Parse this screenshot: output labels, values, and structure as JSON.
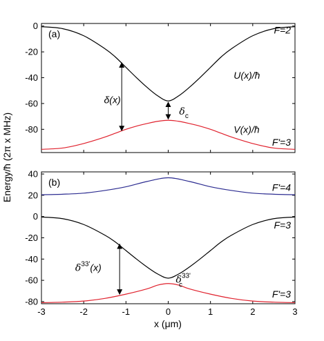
{
  "figure": {
    "ylabel": "Energy/ħ (2π x MHz)",
    "xlabel": "x (μm)"
  },
  "chart_data": [
    {
      "type": "line",
      "panel_label": "(a)",
      "xlim": [
        -3,
        3
      ],
      "ylim": [
        -98,
        2
      ],
      "yticks": [
        "0",
        "-20",
        "-40",
        "-60",
        "-80"
      ],
      "ytick_values": [
        0,
        -20,
        -40,
        -60,
        -80
      ],
      "grid": false,
      "series": [
        {
          "name": "U(x)/ħ",
          "color": "#000000",
          "x": [
            -3,
            -2.5,
            -2,
            -1.5,
            -1.25,
            -1,
            -0.75,
            -0.5,
            -0.25,
            0,
            0.25,
            0.5,
            0.75,
            1,
            1.25,
            1.5,
            2,
            2.5,
            3
          ],
          "y": [
            -0.5,
            -2,
            -7.5,
            -17.5,
            -24,
            -32,
            -40,
            -47.5,
            -54,
            -58,
            -54,
            -47.5,
            -40,
            -32,
            -24,
            -17.5,
            -7.5,
            -2,
            -0.5
          ]
        },
        {
          "name": "V(x)/ħ",
          "color": "#e0202c",
          "x": [
            -3,
            -2.5,
            -2,
            -1.5,
            -1.25,
            -1,
            -0.75,
            -0.5,
            -0.25,
            0,
            0.25,
            0.5,
            0.75,
            1,
            1.25,
            1.5,
            2,
            2.5,
            3
          ],
          "y": [
            -95.5,
            -94.5,
            -91,
            -86,
            -83,
            -80,
            -77.5,
            -75.5,
            -73.8,
            -73,
            -73.8,
            -75.5,
            -77.5,
            -80,
            -83,
            -86,
            -91,
            -94.5,
            -95.5
          ]
        }
      ],
      "level_labels": [
        {
          "text": "F=2",
          "color": "#000000",
          "y": -3
        },
        {
          "text": "F'=3",
          "color": "#e0202c",
          "y": -90
        }
      ],
      "annotations": [
        {
          "text": "U(x)/ħ",
          "color": "#000000",
          "x": 1.55,
          "y": -38
        },
        {
          "text": "V(x)/ħ",
          "color": "#e0202c",
          "x": 1.55,
          "y": -80
        },
        {
          "text": "δ(x)",
          "color": "#000000",
          "x": -1.52,
          "y": -57
        },
        {
          "text": "δ",
          "sub": "c",
          "color": "#000000",
          "x": 0.26,
          "y": -66
        }
      ],
      "arrows": [
        {
          "x": -1.1,
          "y1": -28.5,
          "y2": -81
        },
        {
          "x": 0.0,
          "y1": -59,
          "y2": -72
        }
      ]
    },
    {
      "type": "line",
      "panel_label": "(b)",
      "xlim": [
        -3,
        3
      ],
      "ylim": [
        -82,
        42
      ],
      "yticks": [
        "40",
        "20",
        "0",
        "-20",
        "-40",
        "-60",
        "-80"
      ],
      "ytick_values": [
        40,
        20,
        0,
        -20,
        -40,
        -60,
        -80
      ],
      "xticks": [
        "-3",
        "-2",
        "-1",
        "0",
        "1",
        "2",
        "3"
      ],
      "xtick_values": [
        -3,
        -2,
        -1,
        0,
        1,
        2,
        3
      ],
      "grid": false,
      "series": [
        {
          "name": "F'=4",
          "color": "#2b2b90",
          "x": [
            -3,
            -2.5,
            -2,
            -1.5,
            -1,
            -0.5,
            0,
            0.5,
            1,
            1.5,
            2,
            2.5,
            3
          ],
          "y": [
            20.5,
            21,
            22,
            24.5,
            28,
            33,
            36.5,
            33,
            28,
            24.5,
            22,
            21,
            20.5
          ]
        },
        {
          "name": "F=3",
          "color": "#000000",
          "x": [
            -3,
            -2.5,
            -2,
            -1.5,
            -1.25,
            -1,
            -0.75,
            -0.5,
            -0.25,
            0,
            0.25,
            0.5,
            0.75,
            1,
            1.25,
            1.5,
            2,
            2.5,
            3
          ],
          "y": [
            -0.5,
            -2,
            -7.5,
            -17.5,
            -24,
            -32,
            -40,
            -47.5,
            -54,
            -58,
            -54,
            -47.5,
            -40,
            -32,
            -24,
            -17.5,
            -7.5,
            -2,
            -0.5
          ]
        },
        {
          "name": "F'=3",
          "color": "#e0202c",
          "x": [
            -3,
            -2.5,
            -2,
            -1.5,
            -1,
            -0.5,
            -0.25,
            0,
            0.25,
            0.5,
            1,
            1.5,
            2,
            2.5,
            3
          ],
          "y": [
            -81,
            -80.5,
            -79.5,
            -77,
            -73,
            -68,
            -64.5,
            -63,
            -64.5,
            -68,
            -73,
            -77,
            -79.5,
            -80.5,
            -81
          ]
        }
      ],
      "level_labels": [
        {
          "text": "F'=4",
          "color": "#2b2b90",
          "y": 27.5
        },
        {
          "text": "F=3",
          "color": "#000000",
          "y": -8
        },
        {
          "text": "F'=3",
          "color": "#e0202c",
          "y": -73
        }
      ],
      "annotations": [
        {
          "text": "δ",
          "sup": "33'",
          "tail": "(x)",
          "color": "#000000",
          "x": -2.2,
          "y": -48
        },
        {
          "text": "δ",
          "sub": "c",
          "sup": "33'",
          "color": "#000000",
          "x": 0.18,
          "y": -59
        }
      ],
      "arrows": [
        {
          "x": -1.15,
          "y1": -26,
          "y2": -73
        }
      ]
    }
  ]
}
